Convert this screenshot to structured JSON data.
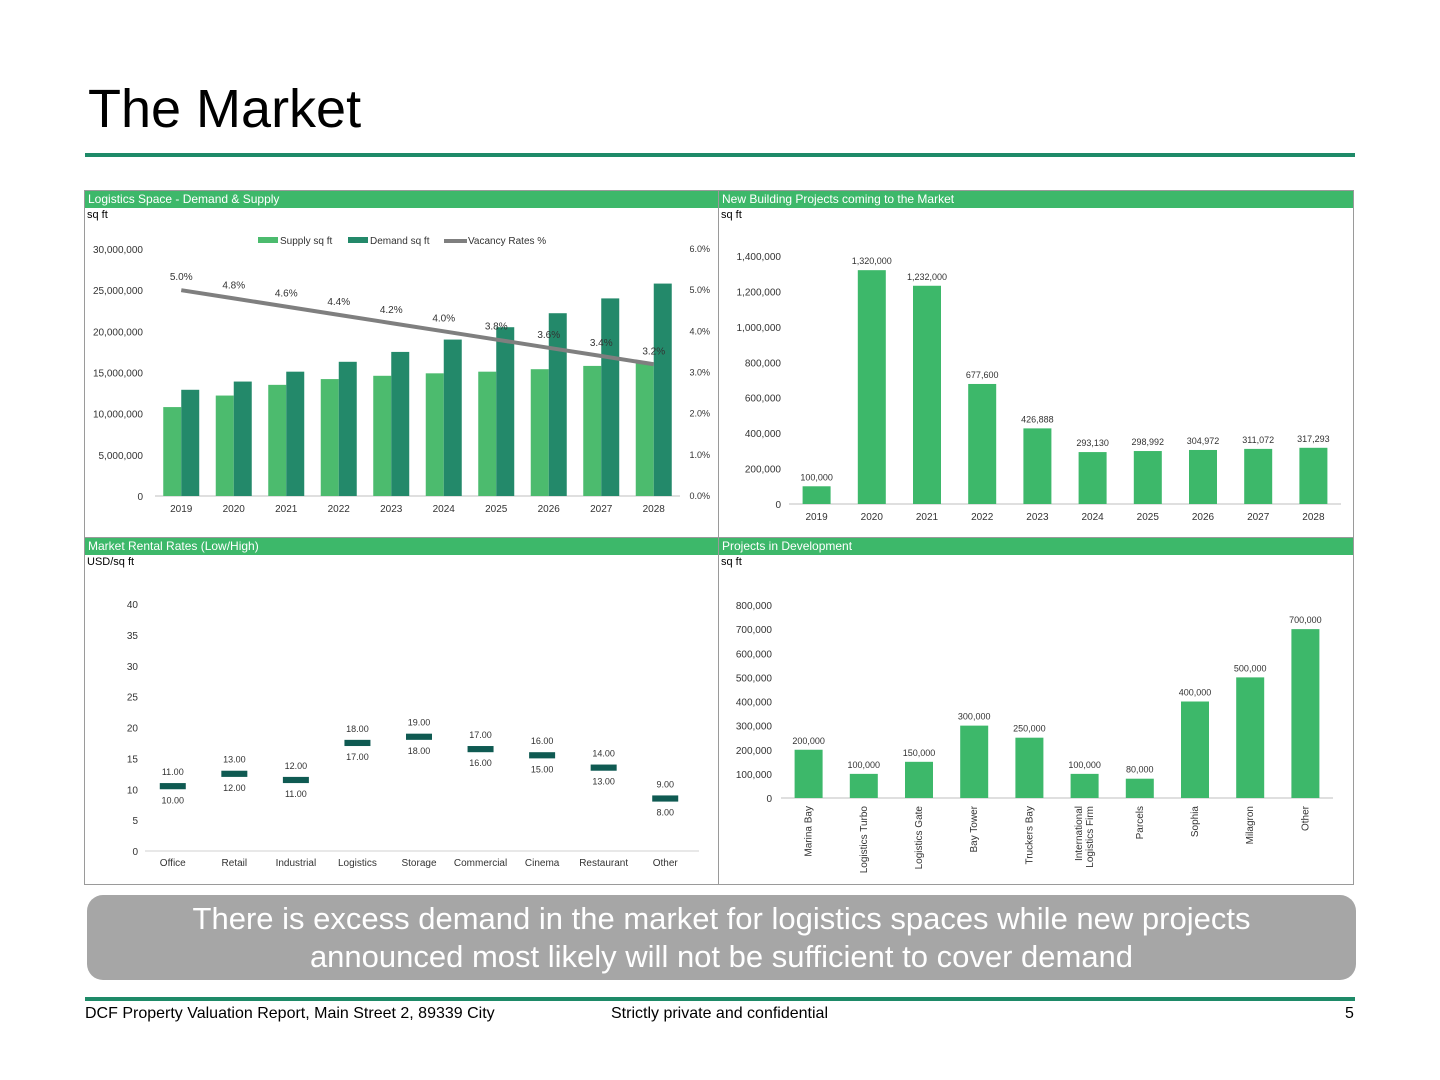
{
  "slide": {
    "title": "The Market",
    "summary_line1": "There is excess demand in the market for logistics spaces while new projects",
    "summary_line2": "announced most likely will not be sufficient to cover demand",
    "accent_color": "#1e8a68",
    "header_color": "#3db86a"
  },
  "footer": {
    "report": "DCF Property Valuation Report, Main Street 2, 89339 City",
    "confidential": "Strictly private and confidential",
    "page_number": "5"
  },
  "panels": {
    "demand_supply": {
      "title": "Logistics Space  - Demand & Supply",
      "unit": "sq ft"
    },
    "new_projects": {
      "title": "New Building Projects coming to the Market",
      "unit": "sq ft"
    },
    "rental_rates": {
      "title": "Market Rental Rates (Low/High)",
      "unit": "USD/sq ft"
    },
    "development": {
      "title": "Projects in Development",
      "unit": "sq ft"
    }
  },
  "chart_data": [
    {
      "type": "bar",
      "categories": [
        "2019",
        "2020",
        "2021",
        "2022",
        "2023",
        "2024",
        "2025",
        "2026",
        "2027",
        "2028"
      ],
      "series": [
        {
          "name": "Supply sq ft",
          "kind": "bar",
          "color": "#4cbb6e",
          "values": [
            10800000,
            12200000,
            13500000,
            14200000,
            14600000,
            14900000,
            15100000,
            15400000,
            15800000,
            16100000
          ]
        },
        {
          "name": "Demand sq ft",
          "kind": "bar",
          "color": "#23896a",
          "values": [
            12900000,
            13900000,
            15100000,
            16300000,
            17500000,
            19000000,
            20500000,
            22200000,
            24000000,
            25800000
          ]
        },
        {
          "name": "Vacancy Rates %",
          "kind": "line",
          "axis": "right",
          "color": "#7f7f7f",
          "values": [
            5.0,
            4.8,
            4.6,
            4.4,
            4.2,
            4.0,
            3.8,
            3.6,
            3.4,
            3.2
          ],
          "labels": [
            "5.0%",
            "4.8%",
            "4.6%",
            "4.4%",
            "4.2%",
            "4.0%",
            "3.8%",
            "3.6%",
            "3.4%",
            "3.2%"
          ]
        }
      ],
      "ylim": [
        0,
        30000000
      ],
      "yticks": [
        "0",
        "5,000,000",
        "10,000,000",
        "15,000,000",
        "20,000,000",
        "25,000,000",
        "30,000,000"
      ],
      "y2lim": [
        0,
        6
      ],
      "y2ticks": [
        "0.0%",
        "1.0%",
        "2.0%",
        "3.0%",
        "4.0%",
        "5.0%",
        "6.0%"
      ],
      "legend_position": "top-center"
    },
    {
      "type": "bar",
      "categories": [
        "2019",
        "2020",
        "2021",
        "2022",
        "2023",
        "2024",
        "2025",
        "2026",
        "2027",
        "2028"
      ],
      "values": [
        100000,
        1320000,
        1232000,
        677600,
        426888,
        293130,
        298992,
        304972,
        311072,
        317293
      ],
      "labels": [
        "100,000",
        "1,320,000",
        "1,232,000",
        "677,600",
        "426,888",
        "293,130",
        "298,992",
        "304,972",
        "311,072",
        "317,293"
      ],
      "color": "#3db86a",
      "ylim": [
        0,
        1400000
      ],
      "yticks": [
        "0",
        "200,000",
        "400,000",
        "600,000",
        "800,000",
        "1,000,000",
        "1,200,000",
        "1,400,000"
      ]
    },
    {
      "type": "range",
      "categories": [
        "Office",
        "Retail",
        "Industrial",
        "Logistics",
        "Storage",
        "Commercial",
        "Cinema",
        "Restaurant",
        "Other"
      ],
      "low": [
        10,
        12,
        11,
        17,
        18,
        16,
        15,
        13,
        8
      ],
      "high": [
        11,
        13,
        12,
        18,
        19,
        17,
        16,
        14,
        9
      ],
      "low_labels": [
        "10.00",
        "12.00",
        "11.00",
        "17.00",
        "18.00",
        "16.00",
        "15.00",
        "13.00",
        "8.00"
      ],
      "high_labels": [
        "11.00",
        "13.00",
        "12.00",
        "18.00",
        "19.00",
        "17.00",
        "16.00",
        "14.00",
        "9.00"
      ],
      "color": "#0f5a52",
      "ylim": [
        0,
        40
      ],
      "yticks": [
        "0",
        "5",
        "10",
        "15",
        "20",
        "25",
        "30",
        "35",
        "40"
      ]
    },
    {
      "type": "bar",
      "categories": [
        "Marina Bay",
        "Logistics Turbo",
        "Logistics Gate",
        "Bay Tower",
        "Truckers Bay",
        "International Logistics Firm",
        "Parcels",
        "Sophia",
        "Milagron",
        "Other"
      ],
      "category_lines": [
        [
          "Marina Bay"
        ],
        [
          "Logistics Turbo"
        ],
        [
          "Logistics Gate"
        ],
        [
          "Bay Tower"
        ],
        [
          "Truckers Bay"
        ],
        [
          "International",
          "Logistics Firm"
        ],
        [
          "Parcels"
        ],
        [
          "Sophia"
        ],
        [
          "Milagron"
        ],
        [
          "Other"
        ]
      ],
      "values": [
        200000,
        100000,
        150000,
        300000,
        250000,
        100000,
        80000,
        400000,
        500000,
        700000
      ],
      "labels": [
        "200,000",
        "100,000",
        "150,000",
        "300,000",
        "250,000",
        "100,000",
        "80,000",
        "400,000",
        "500,000",
        "700,000"
      ],
      "color": "#3db86a",
      "ylim": [
        0,
        800000
      ],
      "yticks": [
        "0",
        "100,000",
        "200,000",
        "300,000",
        "400,000",
        "500,000",
        "600,000",
        "700,000",
        "800,000"
      ]
    }
  ]
}
